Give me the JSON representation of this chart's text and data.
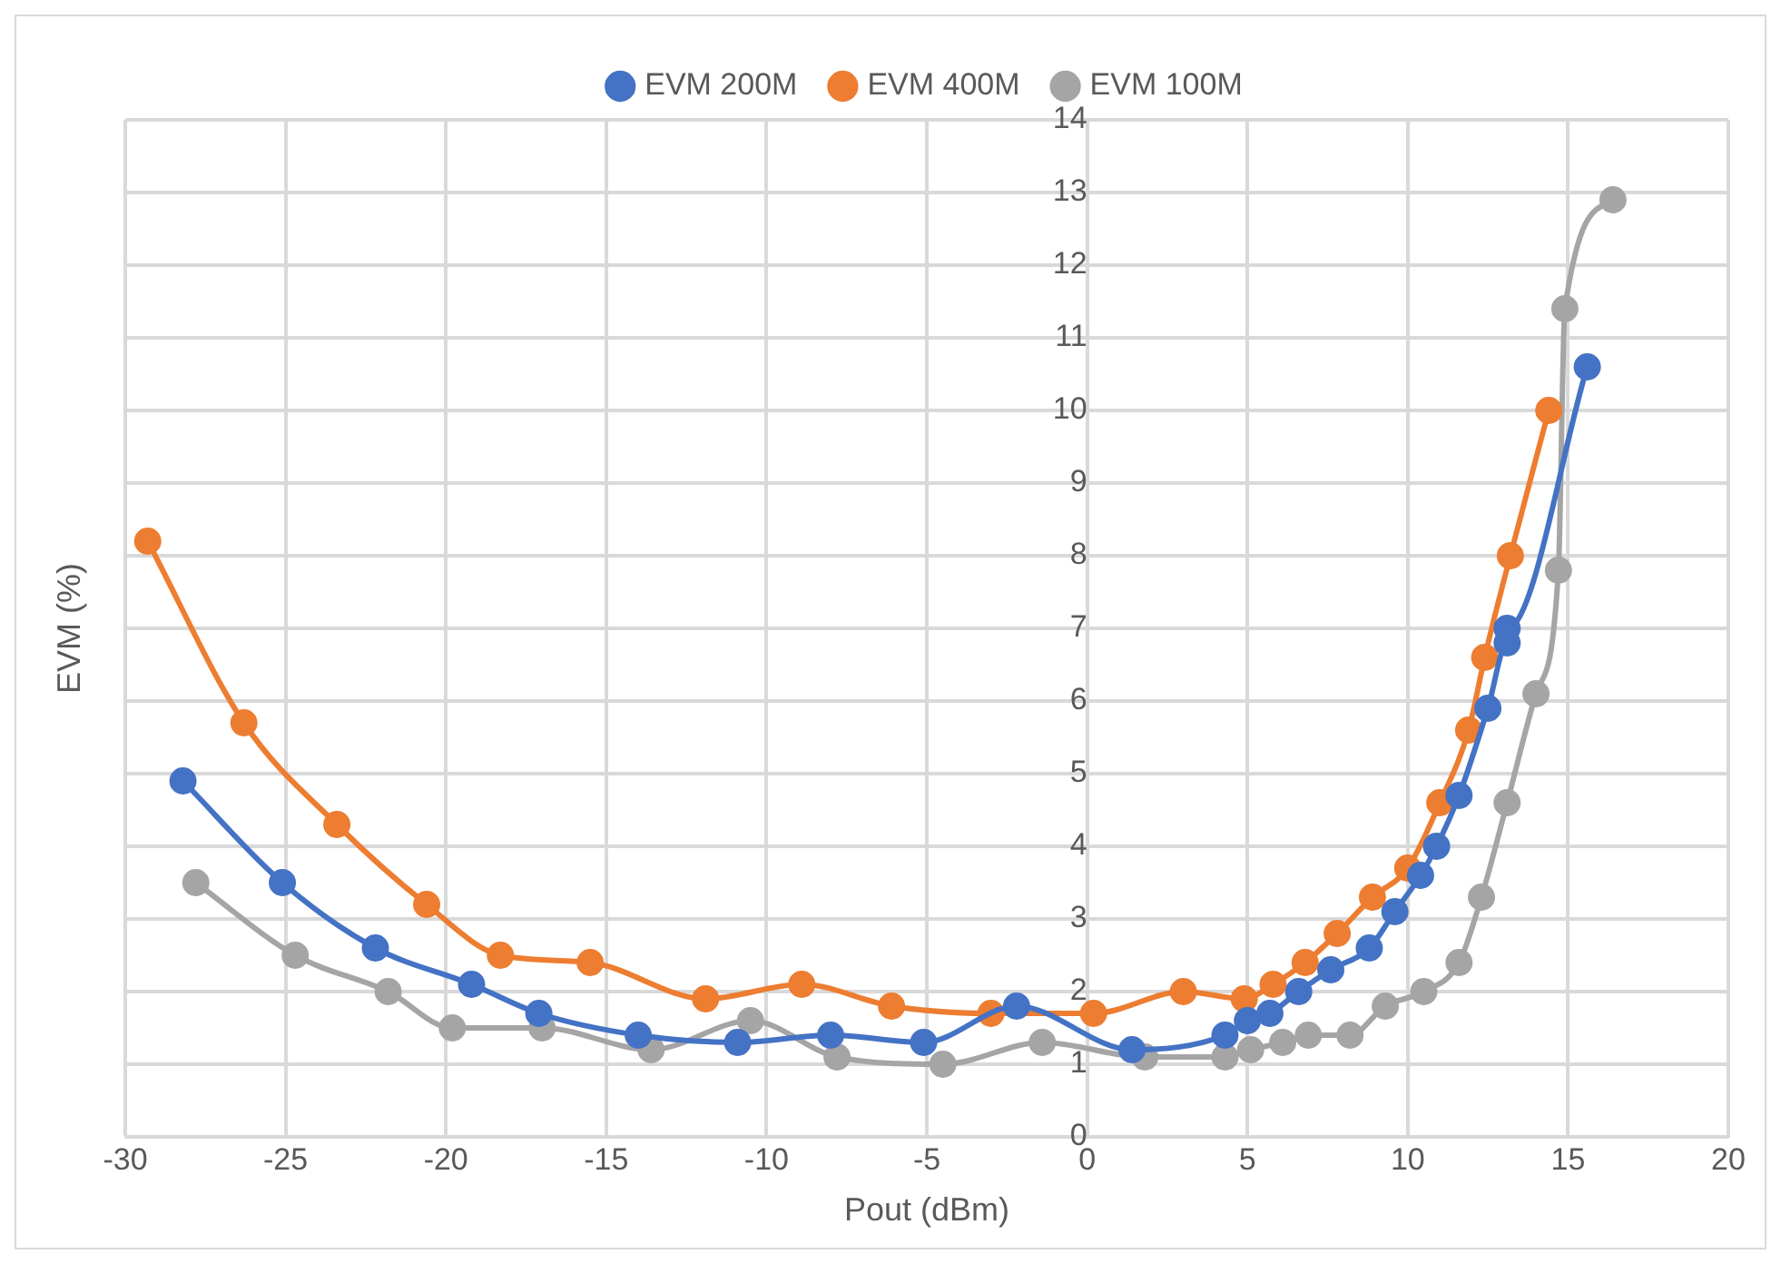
{
  "chart_data": {
    "type": "line",
    "xlabel": "Pout (dBm)",
    "ylabel": "EVM (%)",
    "xlim": [
      -30,
      20
    ],
    "xticks": [
      -30,
      -25,
      -20,
      -15,
      -10,
      -5,
      0,
      5,
      10,
      15,
      20
    ],
    "ylim": [
      0,
      14
    ],
    "yticks": [
      0,
      1,
      2,
      3,
      4,
      5,
      6,
      7,
      8,
      9,
      10,
      11,
      12,
      13,
      14
    ],
    "grid": true,
    "legend": "top",
    "marker": "circle",
    "line_style": "solid",
    "series": [
      {
        "name": "EVM 200M",
        "color": "#4472c4",
        "x": [
          -28.2,
          -25.1,
          -22.2,
          -19.2,
          -17.1,
          -14.0,
          -10.9,
          -8.0,
          -5.1,
          -2.2,
          1.4,
          4.3,
          5.0,
          5.7,
          6.6,
          7.6,
          8.8,
          9.6,
          10.4,
          10.9,
          11.6,
          12.5,
          13.1,
          13.1,
          15.6
        ],
        "values": [
          4.9,
          3.5,
          2.6,
          2.1,
          1.7,
          1.4,
          1.3,
          1.4,
          1.3,
          1.8,
          1.2,
          1.4,
          1.6,
          1.7,
          2.0,
          2.3,
          2.6,
          3.1,
          3.6,
          4.0,
          4.7,
          5.9,
          6.8,
          7.0,
          10.6
        ]
      },
      {
        "name": "EVM 400M",
        "color": "#ed7d31",
        "x": [
          -29.3,
          -26.3,
          -23.4,
          -20.6,
          -18.3,
          -15.5,
          -11.9,
          -8.9,
          -6.1,
          -3.0,
          0.2,
          3.0,
          4.9,
          5.8,
          6.8,
          7.8,
          8.9,
          10.0,
          11.0,
          11.9,
          12.4,
          13.2,
          14.4
        ],
        "values": [
          8.2,
          5.7,
          4.3,
          3.2,
          2.5,
          2.4,
          1.9,
          2.1,
          1.8,
          1.7,
          1.7,
          2.0,
          1.9,
          2.1,
          2.4,
          2.8,
          3.3,
          3.7,
          4.6,
          5.6,
          6.6,
          8.0,
          10.0
        ]
      },
      {
        "name": "EVM 100M",
        "color": "#a5a5a5",
        "x": [
          -27.8,
          -24.7,
          -21.8,
          -19.8,
          -17.0,
          -13.6,
          -10.5,
          -7.8,
          -4.5,
          -1.4,
          1.8,
          4.3,
          5.1,
          6.1,
          6.9,
          8.2,
          9.3,
          10.5,
          11.6,
          12.3,
          13.1,
          14.0,
          14.7,
          14.9,
          16.4
        ],
        "values": [
          3.5,
          2.5,
          2.0,
          1.5,
          1.5,
          1.2,
          1.6,
          1.1,
          1.0,
          1.3,
          1.1,
          1.1,
          1.2,
          1.3,
          1.4,
          1.4,
          1.8,
          2.0,
          2.4,
          3.3,
          4.6,
          6.1,
          7.8,
          11.4,
          12.9
        ]
      }
    ]
  }
}
